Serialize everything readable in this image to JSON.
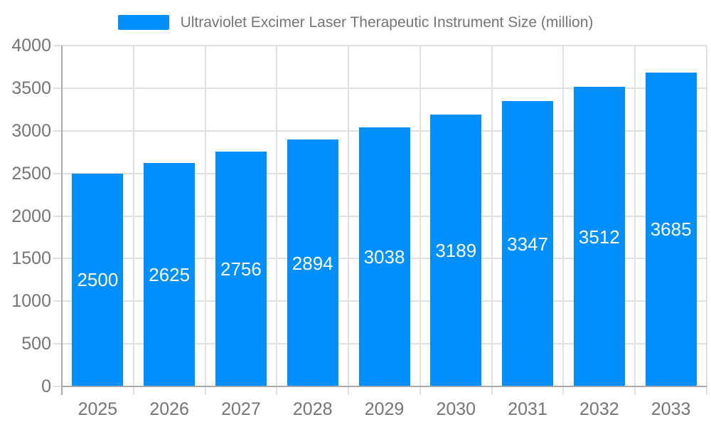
{
  "chart_data": {
    "type": "bar",
    "title": "Ultraviolet Excimer Laser Therapeutic Instrument Size (million)",
    "categories": [
      "2025",
      "2026",
      "2027",
      "2028",
      "2029",
      "2030",
      "2031",
      "2032",
      "2033"
    ],
    "values": [
      2500,
      2625,
      2756,
      2894,
      3038,
      3189,
      3347,
      3512,
      3685
    ],
    "xlabel": "",
    "ylabel": "",
    "ylim": [
      0,
      4000
    ],
    "yticks": [
      0,
      500,
      1000,
      1500,
      2000,
      2500,
      3000,
      3500,
      4000
    ],
    "grid": true,
    "legend_position": "top-center",
    "data_labels": "inside-center-white",
    "colors": {
      "bar": "#008FFB",
      "grid": "#E0E0E0",
      "axis": "#A8A8A8",
      "tick_text": "#757575",
      "legend_text": "#757575",
      "value_text": "#FFFFFF",
      "background": "#FFFFFF"
    }
  }
}
